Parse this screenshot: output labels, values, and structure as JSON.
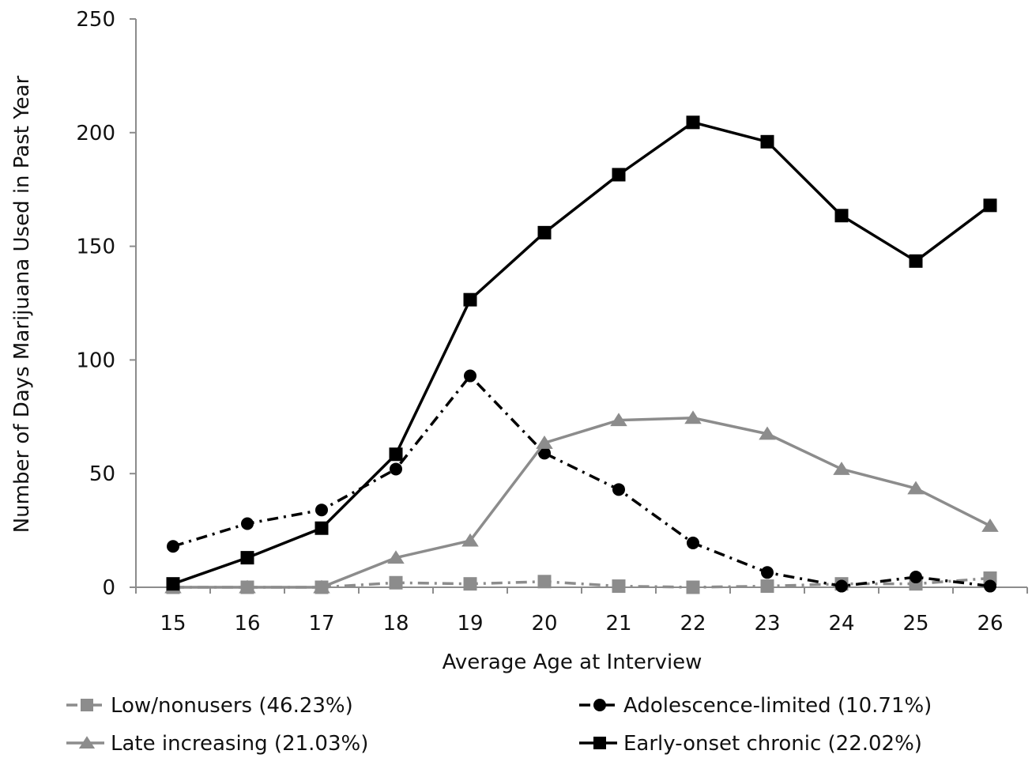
{
  "chart_data": {
    "type": "line",
    "title": "",
    "xlabel": "Average Age at Interview",
    "ylabel": "Number of Days Marijuana Used in Past Year",
    "categories": [
      "15",
      "16",
      "17",
      "18",
      "19",
      "20",
      "21",
      "22",
      "23",
      "24",
      "25",
      "26"
    ],
    "ylim": [
      0,
      250
    ],
    "yticks": [
      "0",
      "50",
      "100",
      "150",
      "200",
      "250"
    ],
    "grid": false,
    "legend_position": "bottom",
    "series": [
      {
        "name": "Low/nonusers (46.23%)",
        "values": [
          0,
          0,
          0,
          2,
          1.5,
          2.5,
          0.5,
          0,
          0.5,
          1.5,
          1.5,
          4
        ],
        "color": "#8c8c8c",
        "marker": "square",
        "dash": "dashdot"
      },
      {
        "name": "Adolescence-limited (10.71%)",
        "values": [
          18,
          28,
          34,
          52,
          93,
          59,
          43,
          19.5,
          6.5,
          0.5,
          4.5,
          0.5
        ],
        "color": "#000000",
        "marker": "circle",
        "dash": "dashdot"
      },
      {
        "name": "Late increasing (21.03%)",
        "values": [
          0,
          0,
          0,
          13,
          20.5,
          63.5,
          73.5,
          74.5,
          67.5,
          52,
          43.5,
          27
        ],
        "color": "#8c8c8c",
        "marker": "triangle",
        "dash": "solid"
      },
      {
        "name": "Early-onset chronic (22.02%)",
        "values": [
          1.5,
          13,
          26,
          58.5,
          126.5,
          156,
          181.5,
          204.5,
          196,
          163.5,
          143.5,
          168
        ],
        "color": "#000000",
        "marker": "square",
        "dash": "solid"
      }
    ]
  }
}
